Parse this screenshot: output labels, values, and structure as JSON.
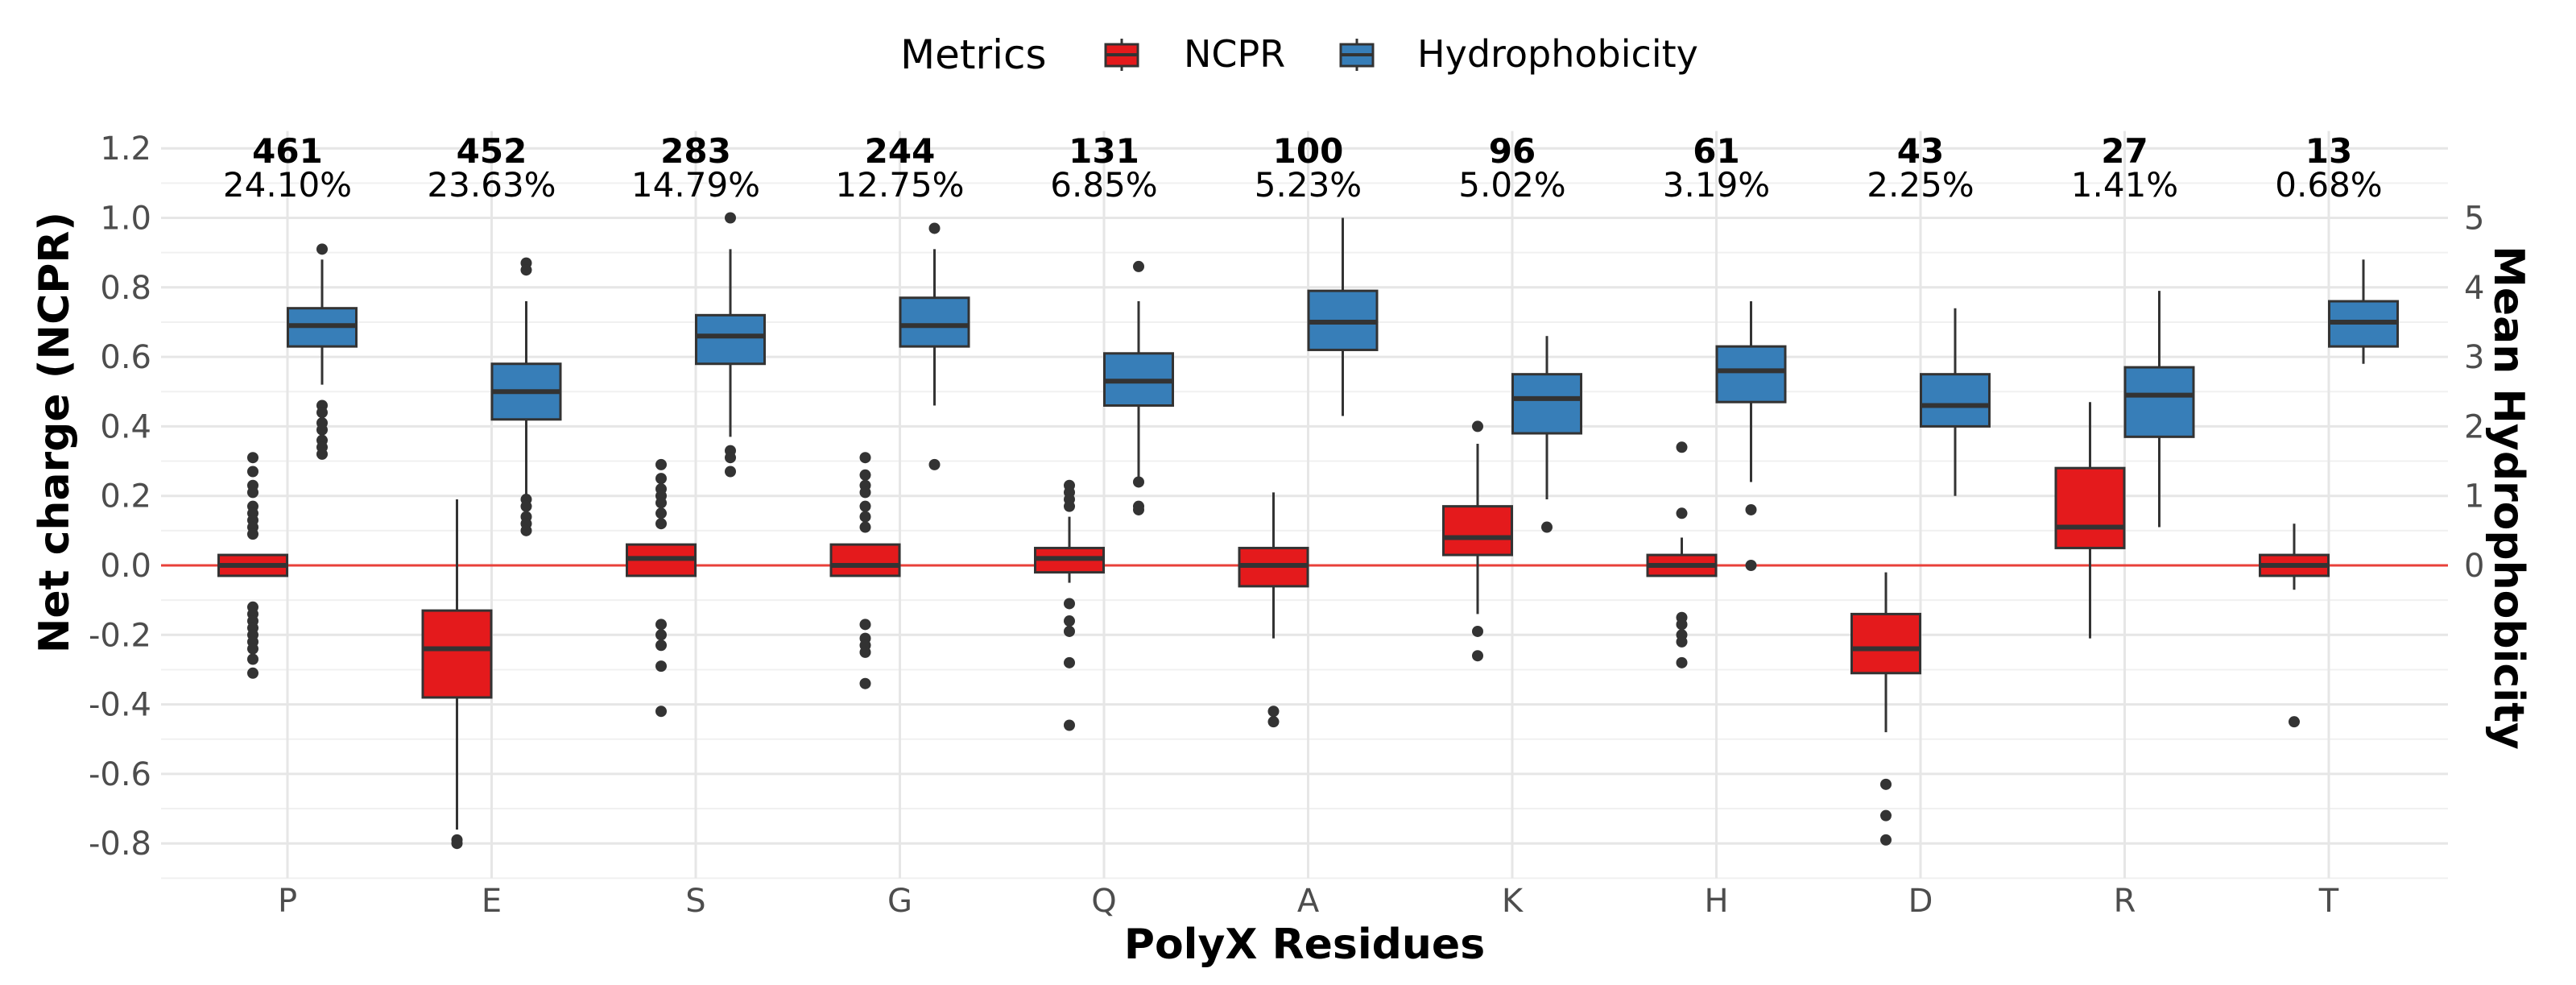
{
  "chart_data": {
    "type": "boxplot",
    "xlabel": "PolyX Residues",
    "ylabel_left": "Net charge (NCPR)",
    "ylabel_right": "Mean Hydrophobicity",
    "ylim_left": [
      -0.9,
      1.25
    ],
    "yticks_left": [
      -0.8,
      -0.6,
      -0.4,
      -0.2,
      0.0,
      0.2,
      0.4,
      0.6,
      0.8,
      1.0,
      1.2
    ],
    "yticks_left_labels": [
      "-0.8",
      "-0.6",
      "-0.4",
      "-0.2",
      "0.0",
      "0.2",
      "0.4",
      "0.6",
      "0.8",
      "1.0",
      "1.2"
    ],
    "yticks_right": [
      0,
      1,
      2,
      3,
      4,
      5
    ],
    "yticks_right_labels": [
      "0",
      "1",
      "2",
      "3",
      "4",
      "5"
    ],
    "right_axis_scale": 0.2,
    "reference_line_y": 0.0,
    "legend": {
      "title": "Metrics",
      "entries": [
        {
          "name": "NCPR",
          "color": "#e41a1c"
        },
        {
          "name": "Hydrophobicity",
          "color": "#377eb8"
        }
      ]
    },
    "categories": [
      "P",
      "E",
      "S",
      "G",
      "Q",
      "A",
      "K",
      "H",
      "D",
      "R",
      "T"
    ],
    "counts": [
      "461",
      "452",
      "283",
      "244",
      "131",
      "100",
      "96",
      "61",
      "43",
      "27",
      "13"
    ],
    "percentages": [
      "24.10%",
      "23.63%",
      "14.79%",
      "12.75%",
      "6.85%",
      "5.23%",
      "5.02%",
      "3.19%",
      "2.25%",
      "1.41%",
      "0.68%"
    ],
    "series": [
      {
        "name": "NCPR",
        "color": "#e41a1c",
        "boxes": [
          {
            "lw": -0.03,
            "q1": -0.03,
            "med": 0.0,
            "q3": 0.03,
            "uw": 0.03,
            "outliers": [
              0.31,
              0.27,
              0.23,
              0.21,
              0.17,
              0.15,
              0.13,
              0.11,
              0.09,
              -0.12,
              -0.14,
              -0.16,
              -0.18,
              -0.2,
              -0.22,
              -0.24,
              -0.27,
              -0.31
            ]
          },
          {
            "lw": -0.76,
            "q1": -0.38,
            "med": -0.24,
            "q3": -0.13,
            "uw": 0.19,
            "outliers": [
              -0.79,
              -0.8
            ]
          },
          {
            "lw": -0.03,
            "q1": -0.03,
            "med": 0.02,
            "q3": 0.06,
            "uw": 0.06,
            "outliers": [
              0.29,
              0.25,
              0.22,
              0.2,
              0.18,
              0.15,
              0.12,
              -0.17,
              -0.2,
              -0.23,
              -0.29,
              -0.42
            ]
          },
          {
            "lw": -0.03,
            "q1": -0.03,
            "med": 0.0,
            "q3": 0.06,
            "uw": 0.06,
            "outliers": [
              0.31,
              0.26,
              0.23,
              0.21,
              0.17,
              0.14,
              0.11,
              -0.17,
              -0.21,
              -0.23,
              -0.25,
              -0.34
            ]
          },
          {
            "lw": -0.05,
            "q1": -0.02,
            "med": 0.02,
            "q3": 0.05,
            "uw": 0.14,
            "outliers": [
              0.23,
              0.21,
              0.19,
              0.17,
              -0.11,
              -0.16,
              -0.19,
              -0.28,
              -0.46
            ]
          },
          {
            "lw": -0.21,
            "q1": -0.06,
            "med": 0.0,
            "q3": 0.05,
            "uw": 0.21,
            "outliers": [
              -0.42,
              -0.45
            ]
          },
          {
            "lw": -0.14,
            "q1": 0.03,
            "med": 0.08,
            "q3": 0.17,
            "uw": 0.35,
            "outliers": [
              0.4,
              -0.19,
              -0.26
            ]
          },
          {
            "lw": -0.03,
            "q1": -0.03,
            "med": 0.0,
            "q3": 0.03,
            "uw": 0.08,
            "outliers": [
              0.34,
              0.15,
              -0.15,
              -0.17,
              -0.2,
              -0.22,
              -0.28
            ]
          },
          {
            "lw": -0.48,
            "q1": -0.31,
            "med": -0.24,
            "q3": -0.14,
            "uw": -0.02,
            "outliers": [
              -0.63,
              -0.72,
              -0.79
            ]
          },
          {
            "lw": -0.21,
            "q1": 0.05,
            "med": 0.11,
            "q3": 0.28,
            "uw": 0.47,
            "outliers": []
          },
          {
            "lw": -0.07,
            "q1": -0.03,
            "med": 0.0,
            "q3": 0.03,
            "uw": 0.12,
            "outliers": [
              -0.45
            ]
          }
        ]
      },
      {
        "name": "Hydrophobicity",
        "color": "#377eb8",
        "boxes": [
          {
            "lw": 0.52,
            "q1": 0.63,
            "med": 0.69,
            "q3": 0.74,
            "uw": 0.88,
            "outliers": [
              0.91,
              0.46,
              0.44,
              0.41,
              0.39,
              0.36,
              0.34,
              0.32
            ]
          },
          {
            "lw": 0.2,
            "q1": 0.42,
            "med": 0.5,
            "q3": 0.58,
            "uw": 0.76,
            "outliers": [
              0.87,
              0.85,
              0.19,
              0.17,
              0.14,
              0.12,
              0.1
            ]
          },
          {
            "lw": 0.37,
            "q1": 0.58,
            "med": 0.66,
            "q3": 0.72,
            "uw": 0.91,
            "outliers": [
              1.0,
              0.33,
              0.31,
              0.27
            ]
          },
          {
            "lw": 0.46,
            "q1": 0.63,
            "med": 0.69,
            "q3": 0.77,
            "uw": 0.91,
            "outliers": [
              0.97,
              0.29
            ]
          },
          {
            "lw": 0.25,
            "q1": 0.46,
            "med": 0.53,
            "q3": 0.61,
            "uw": 0.76,
            "outliers": [
              0.86,
              0.24,
              0.17,
              0.16
            ]
          },
          {
            "lw": 0.43,
            "q1": 0.62,
            "med": 0.7,
            "q3": 0.79,
            "uw": 1.0,
            "outliers": []
          },
          {
            "lw": 0.19,
            "q1": 0.38,
            "med": 0.48,
            "q3": 0.55,
            "uw": 0.66,
            "outliers": [
              0.11
            ]
          },
          {
            "lw": 0.24,
            "q1": 0.47,
            "med": 0.56,
            "q3": 0.63,
            "uw": 0.76,
            "outliers": [
              0.16,
              0.0
            ]
          },
          {
            "lw": 0.2,
            "q1": 0.4,
            "med": 0.46,
            "q3": 0.55,
            "uw": 0.74,
            "outliers": []
          },
          {
            "lw": 0.11,
            "q1": 0.37,
            "med": 0.49,
            "q3": 0.57,
            "uw": 0.79,
            "outliers": []
          },
          {
            "lw": 0.58,
            "q1": 0.63,
            "med": 0.7,
            "q3": 0.76,
            "uw": 0.88,
            "outliers": []
          }
        ]
      }
    ]
  }
}
